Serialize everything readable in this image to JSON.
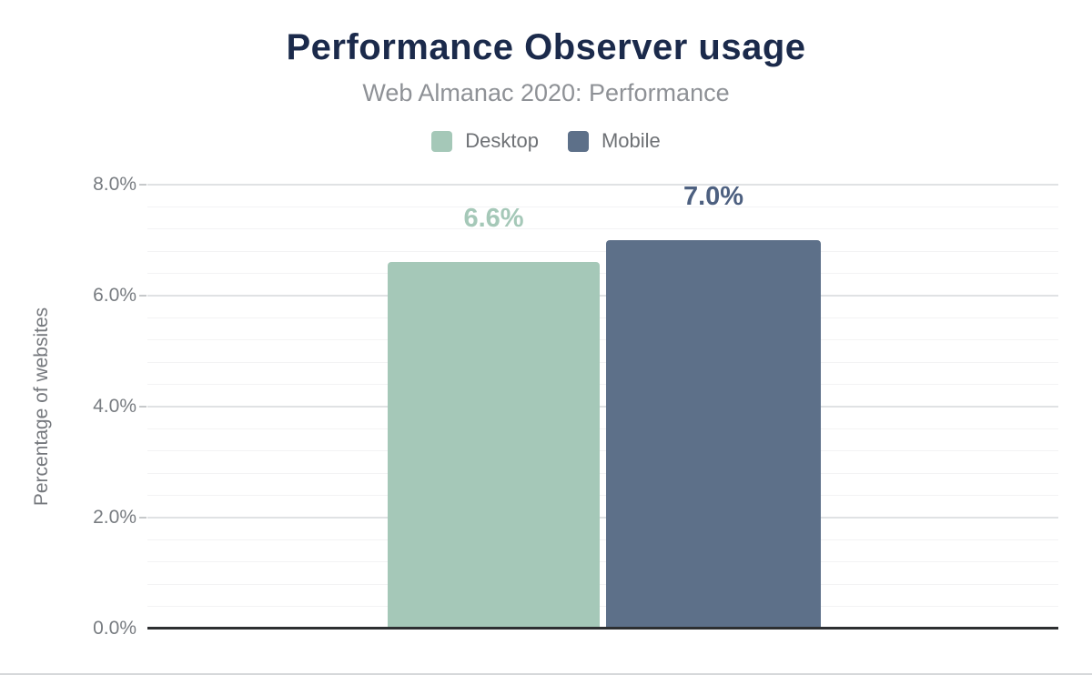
{
  "chart_data": {
    "type": "bar",
    "title": "Performance Observer usage",
    "subtitle": "Web Almanac 2020: Performance",
    "categories": [
      ""
    ],
    "series": [
      {
        "name": "Desktop",
        "values": [
          6.6
        ],
        "data_label": "6.6%",
        "color": "#a5c8b8",
        "data_label_color": "#a5c8b8"
      },
      {
        "name": "Mobile",
        "values": [
          7.0
        ],
        "data_label": "7.0%",
        "color": "#5d7089",
        "data_label_color": "#4d6080"
      }
    ],
    "xlabel": "",
    "ylabel": "Percentage of websites",
    "ylim": [
      0,
      8
    ],
    "ytick_values": [
      0,
      2,
      4,
      6,
      8
    ],
    "ytick_labels": [
      "0.0%",
      "2.0%",
      "4.0%",
      "6.0%",
      "8.0%"
    ],
    "grid": {
      "grid_on": true,
      "major_interval_pct": 2.0,
      "minor_interval_pct": 0.4
    },
    "legend_position": "top",
    "colors": {
      "background": "#ffffff",
      "title": "#1b2a4b",
      "subtitle": "#8e9196",
      "legend_text": "#6e7175",
      "axis_text": "#787c81",
      "ylabel_text": "#75787d",
      "axis_line": "#2d2f31",
      "major_gridline": "#e0e2e4",
      "minor_gridline": "#f3f3f4",
      "tick_mark": "#c6c9cb",
      "bottom_border": "#d6d8da"
    }
  }
}
